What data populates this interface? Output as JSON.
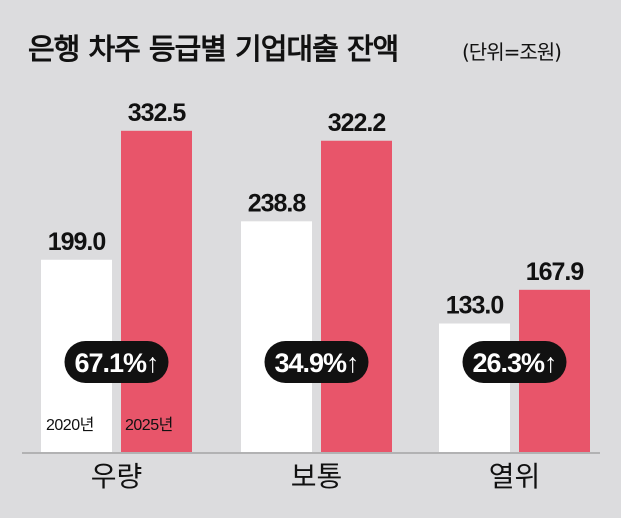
{
  "header": {
    "title": "은행 차주 등급별 기업대출 잔액",
    "unit": "(단위=조원)"
  },
  "colors": {
    "background": "#dcdcde",
    "series_2020": "#ffffff",
    "series_2025": "#e8556a",
    "pill": "#111111"
  },
  "chart_data": {
    "type": "bar",
    "title": "은행 차주 등급별 기업대출 잔액",
    "unit": "(단위=조원)",
    "categories": [
      "우량",
      "보통",
      "열위"
    ],
    "series": [
      {
        "name": "2020년",
        "values": [
          199.0,
          238.8,
          133.0
        ],
        "labels": [
          "199.0",
          "238.8",
          "133.0"
        ]
      },
      {
        "name": "2025년",
        "values": [
          332.5,
          322.2,
          167.9
        ],
        "labels": [
          "332.5",
          "322.2",
          "167.9"
        ]
      }
    ],
    "growth": [
      "67.1%↑",
      "34.9%↑",
      "26.3%↑"
    ],
    "ylim": [
      0,
      350
    ],
    "grid": false,
    "legend": "inside-bottom-left"
  }
}
